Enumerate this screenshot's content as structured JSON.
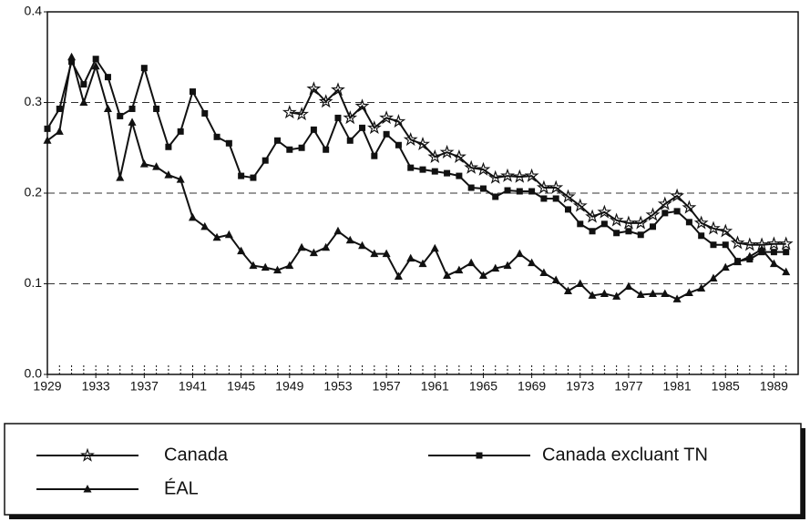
{
  "chart_data": {
    "type": "line",
    "x": [
      1929,
      1930,
      1931,
      1932,
      1933,
      1934,
      1935,
      1936,
      1937,
      1938,
      1939,
      1940,
      1941,
      1942,
      1943,
      1944,
      1945,
      1946,
      1947,
      1948,
      1949,
      1950,
      1951,
      1952,
      1953,
      1954,
      1955,
      1956,
      1957,
      1958,
      1959,
      1960,
      1961,
      1962,
      1963,
      1964,
      1965,
      1966,
      1967,
      1968,
      1969,
      1970,
      1971,
      1972,
      1973,
      1974,
      1975,
      1976,
      1977,
      1978,
      1979,
      1980,
      1981,
      1982,
      1983,
      1984,
      1985,
      1986,
      1987,
      1988,
      1989,
      1990
    ],
    "xlim": [
      1929,
      1991
    ],
    "xticks": [
      1929,
      1933,
      1937,
      1941,
      1945,
      1949,
      1953,
      1957,
      1961,
      1965,
      1969,
      1973,
      1977,
      1981,
      1985,
      1989
    ],
    "ylim": [
      0,
      0.4
    ],
    "yticks": [
      {
        "value": 0,
        "label": "0.0"
      },
      0.1,
      0.2,
      0.3,
      0.4
    ],
    "grid": true,
    "series": [
      {
        "name": "Canada",
        "color": "#111111",
        "marker": "star",
        "values": [
          null,
          null,
          null,
          null,
          null,
          null,
          null,
          null,
          null,
          null,
          null,
          null,
          null,
          null,
          null,
          null,
          null,
          null,
          null,
          null,
          0.289,
          0.287,
          0.315,
          0.301,
          0.314,
          0.283,
          0.296,
          0.272,
          0.283,
          0.279,
          0.259,
          0.254,
          0.24,
          0.245,
          0.24,
          0.228,
          0.226,
          0.217,
          0.219,
          0.218,
          0.219,
          0.206,
          0.206,
          0.196,
          0.186,
          0.174,
          0.179,
          0.17,
          0.167,
          0.167,
          0.176,
          0.188,
          0.197,
          0.184,
          0.167,
          0.161,
          0.158,
          0.145,
          0.143,
          0.143,
          0.144,
          0.144
        ]
      },
      {
        "name": "Canada excluant TN",
        "color": "#111111",
        "marker": "square",
        "values": [
          0.271,
          0.293,
          0.345,
          0.32,
          0.348,
          0.328,
          0.285,
          0.293,
          0.338,
          0.293,
          0.251,
          0.268,
          0.312,
          0.288,
          0.262,
          0.255,
          0.219,
          0.217,
          0.236,
          0.258,
          0.248,
          0.25,
          0.27,
          0.248,
          0.283,
          0.258,
          0.272,
          0.241,
          0.265,
          0.253,
          0.228,
          0.226,
          0.224,
          0.222,
          0.219,
          0.206,
          0.205,
          0.196,
          0.203,
          0.202,
          0.202,
          0.194,
          0.194,
          0.182,
          0.166,
          0.158,
          0.166,
          0.156,
          0.158,
          0.154,
          0.163,
          0.178,
          0.18,
          0.168,
          0.153,
          0.143,
          0.143,
          0.125,
          0.127,
          0.135,
          0.135,
          0.135
        ]
      },
      {
        "name": "ÉAL",
        "color": "#111111",
        "marker": "triangle",
        "values": [
          0.258,
          0.268,
          0.35,
          0.3,
          0.34,
          0.293,
          0.217,
          0.278,
          0.232,
          0.229,
          0.22,
          0.215,
          0.173,
          0.163,
          0.151,
          0.154,
          0.136,
          0.12,
          0.118,
          0.115,
          0.12,
          0.14,
          0.134,
          0.14,
          0.158,
          0.148,
          0.142,
          0.133,
          0.133,
          0.108,
          0.128,
          0.122,
          0.139,
          0.109,
          0.115,
          0.123,
          0.109,
          0.117,
          0.12,
          0.133,
          0.123,
          0.112,
          0.104,
          0.092,
          0.1,
          0.087,
          0.089,
          0.086,
          0.097,
          0.088,
          0.089,
          0.089,
          0.083,
          0.09,
          0.095,
          0.106,
          0.118,
          0.124,
          0.13,
          0.138,
          0.122,
          0.113
        ]
      }
    ]
  }
}
